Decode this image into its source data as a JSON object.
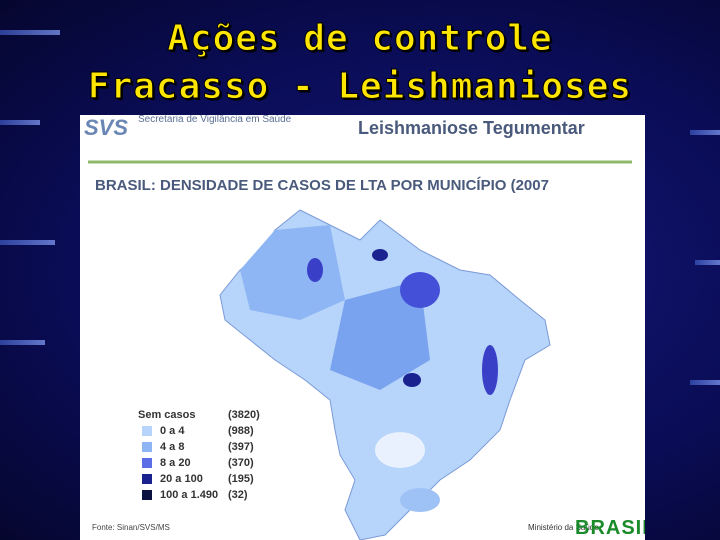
{
  "title": {
    "line1": "Ações de controle",
    "line2": "Fracasso - Leishmanioses"
  },
  "header": {
    "logo": "SVS",
    "agency": "Secretaria de Vigilância em Saúde",
    "subject": "Leishmaniose Tegumentar"
  },
  "map": {
    "title": "BRASIL: DENSIDADE DE CASOS DE LTA POR MUNICÍPIO (2007",
    "legend": [
      {
        "range": "Sem casos",
        "count": "(3820)"
      },
      {
        "range": "0 a 4",
        "count": "(988)"
      },
      {
        "range": "4 a 8",
        "count": "(397)"
      },
      {
        "range": "8 a 20",
        "count": "(370)"
      },
      {
        "range": "20 a 100",
        "count": "(195)"
      },
      {
        "range": "100 a 1.490",
        "count": "(32)"
      }
    ],
    "source": "Fonte: Sinan/SVS/MS"
  },
  "footer": {
    "ministry": "Ministério da Saúde",
    "brand": "BRASIL"
  }
}
